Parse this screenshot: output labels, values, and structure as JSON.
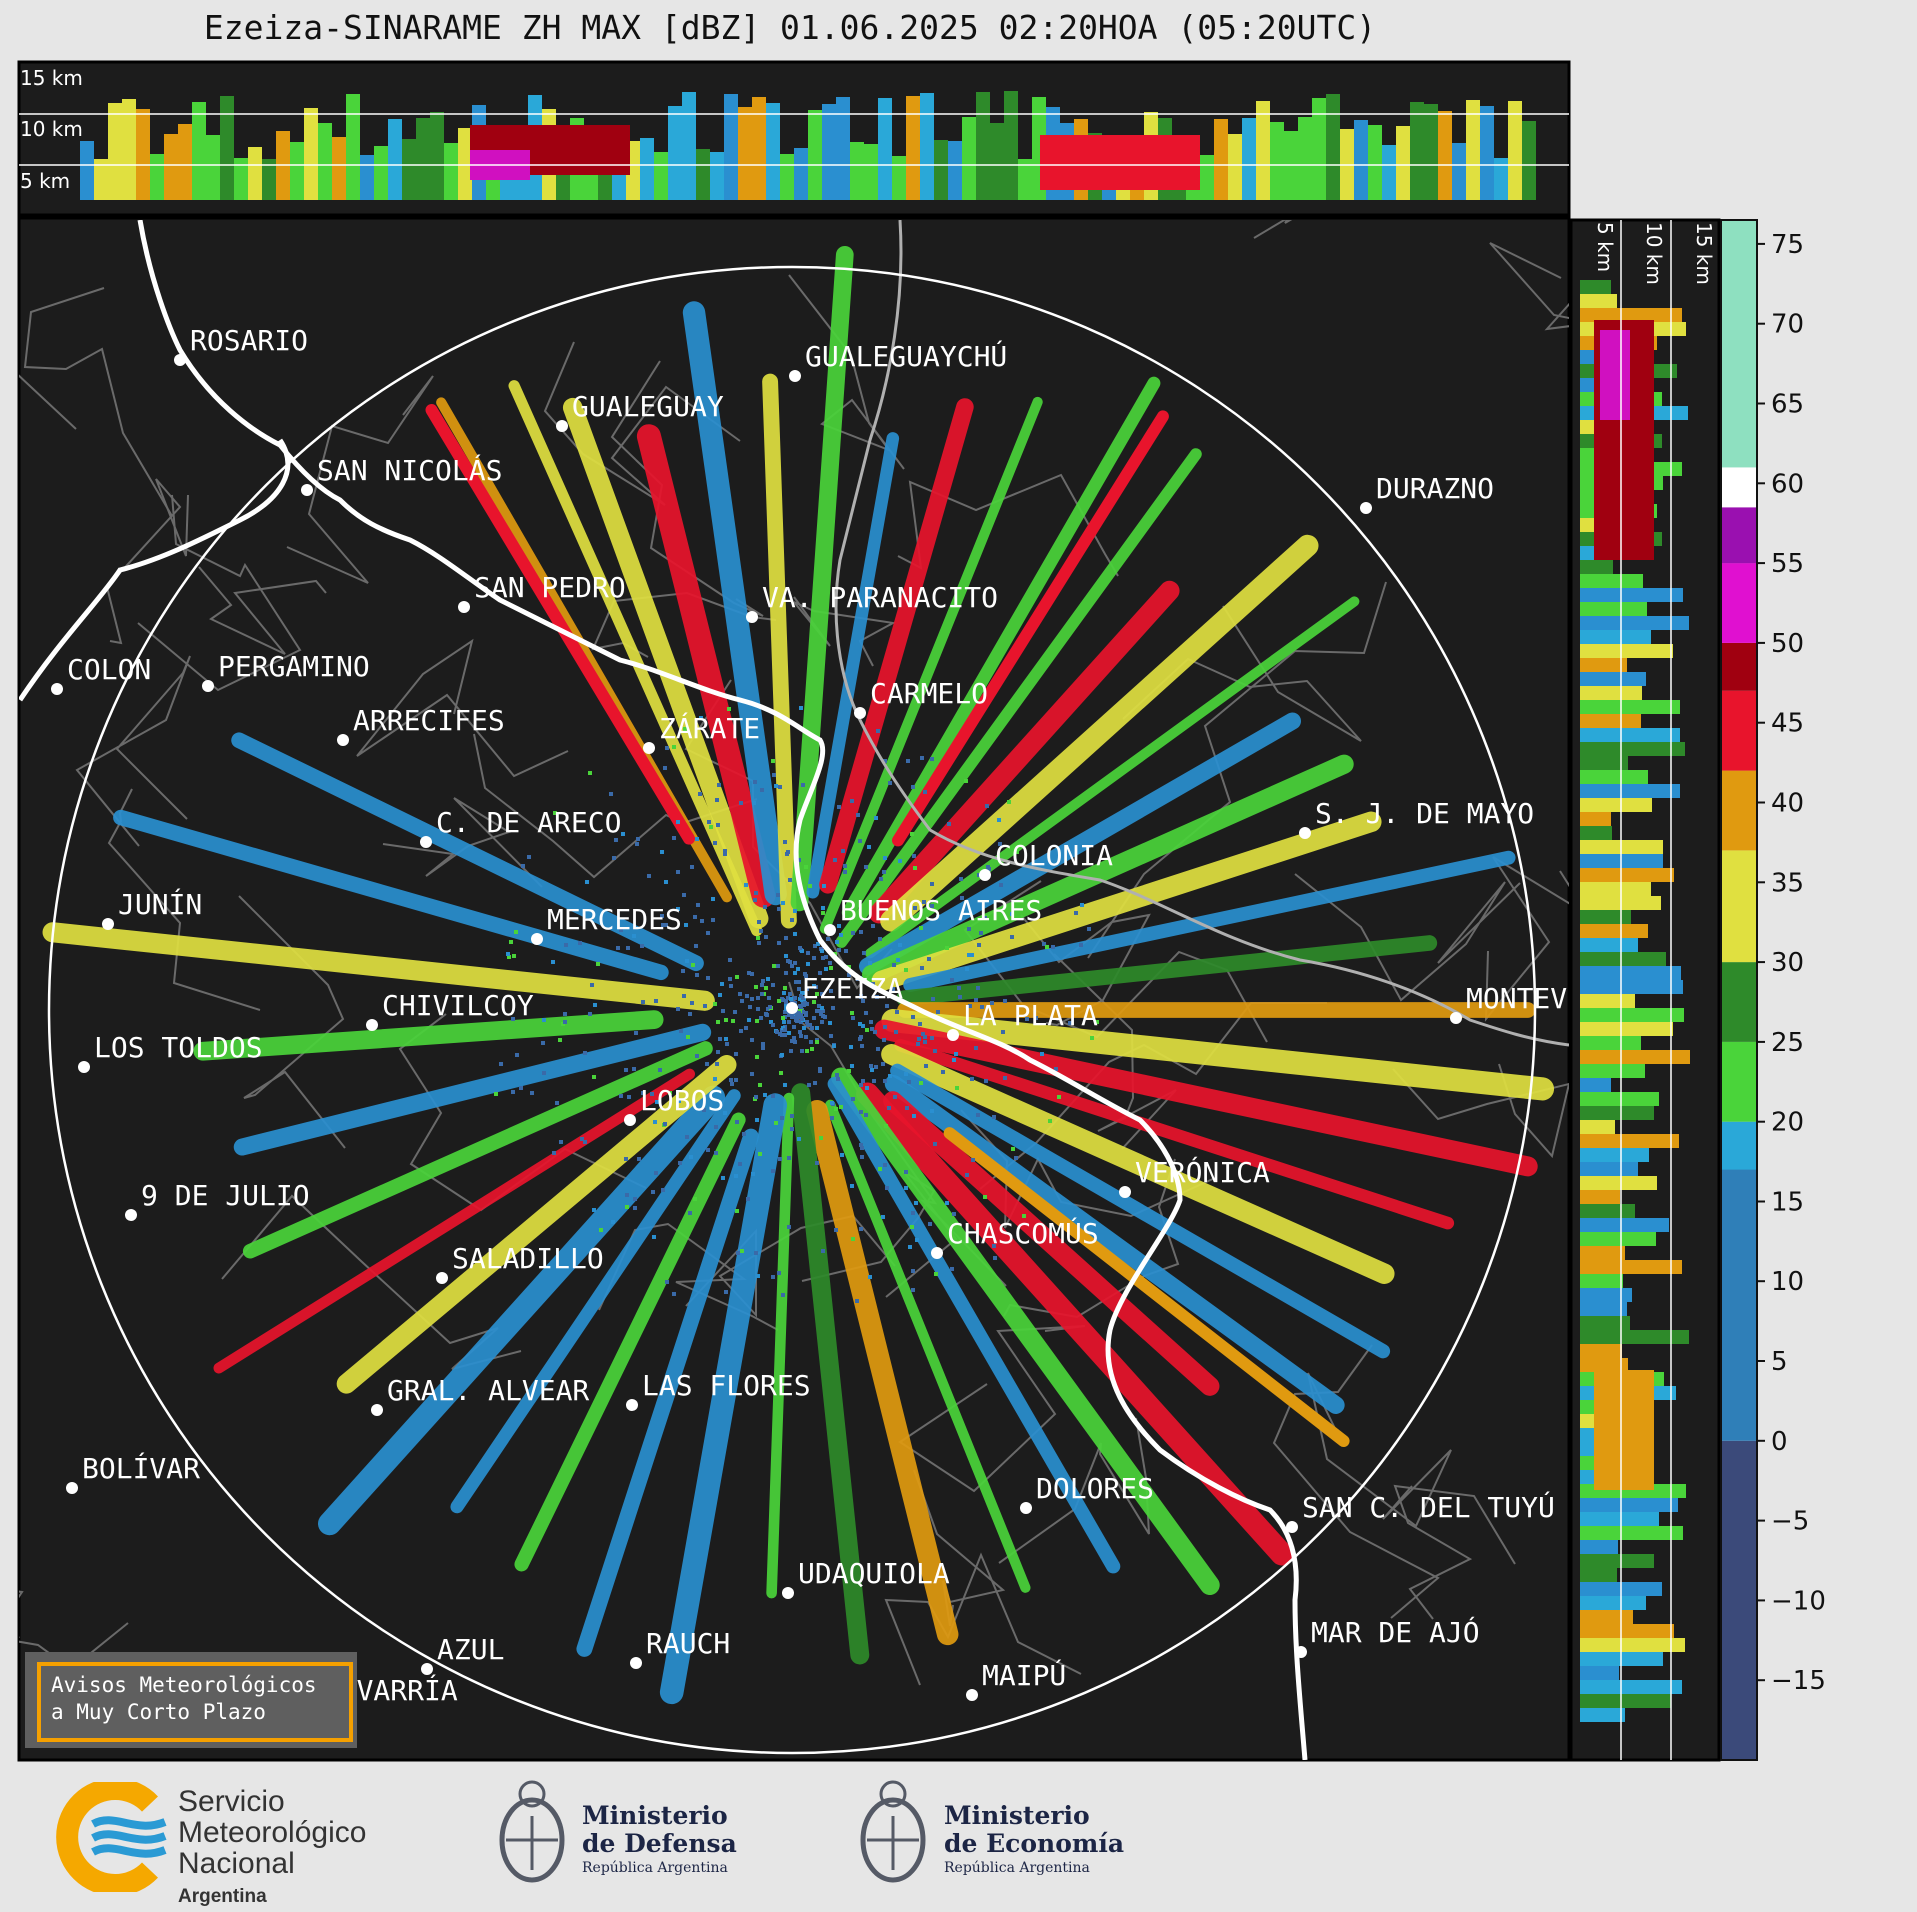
{
  "title": "Ezeiza-SINARAME ZH MAX [dBZ] 01.06.2025 02:20HOA (05:20UTC)",
  "top_panel": {
    "height_labels": [
      "15 km",
      "10 km",
      "5 km"
    ]
  },
  "right_panel": {
    "height_labels": [
      "5 km",
      "10 km",
      "15 km"
    ]
  },
  "colorbar": {
    "unit": "dBZ",
    "ticks": [
      "75",
      "70",
      "65",
      "60",
      "55",
      "50",
      "45",
      "40",
      "35",
      "30",
      "25",
      "20",
      "15",
      "10",
      "5",
      "0",
      "−5",
      "−10",
      "−15"
    ],
    "range": [
      -20,
      76.5
    ],
    "segments": [
      {
        "from": -20,
        "to": 0,
        "color": "#3b4a7a"
      },
      {
        "from": 0,
        "to": 17,
        "color": "#2f7fb8"
      },
      {
        "from": 17,
        "to": 20,
        "color": "#2aa8d8"
      },
      {
        "from": 20,
        "to": 25,
        "color": "#4ad43a"
      },
      {
        "from": 25,
        "to": 30,
        "color": "#2e8a2a"
      },
      {
        "from": 30,
        "to": 37,
        "color": "#e0e040"
      },
      {
        "from": 37,
        "to": 42,
        "color": "#e09a10"
      },
      {
        "from": 42,
        "to": 47,
        "color": "#e8142c"
      },
      {
        "from": 47,
        "to": 50,
        "color": "#a00010"
      },
      {
        "from": 50,
        "to": 55,
        "color": "#e010d0"
      },
      {
        "from": 55,
        "to": 58.5,
        "color": "#9a10b0"
      },
      {
        "from": 58.5,
        "to": 61,
        "color": "#ffffff"
      },
      {
        "from": 61,
        "to": 76.5,
        "color": "#8ee0c0"
      }
    ]
  },
  "map": {
    "radar_center": "EZEIZA",
    "cities": [
      {
        "name": "ROSARIO"
      },
      {
        "name": "GUALEGUAYCHÚ"
      },
      {
        "name": "GUALEGUAY"
      },
      {
        "name": "SAN NICOLÁS"
      },
      {
        "name": "DURAZNO"
      },
      {
        "name": "SAN PEDRO"
      },
      {
        "name": "VA. PARANACITO"
      },
      {
        "name": "COLON"
      },
      {
        "name": "PERGAMINO"
      },
      {
        "name": "CARMELO"
      },
      {
        "name": "ARRECIFES"
      },
      {
        "name": "ZÁRATE"
      },
      {
        "name": "C. DE ARECO"
      },
      {
        "name": "S. J. DE MAYO"
      },
      {
        "name": "COLONIA"
      },
      {
        "name": "JUNÍN"
      },
      {
        "name": "BUENOS AIRES"
      },
      {
        "name": "MERCEDES"
      },
      {
        "name": "EZEIZA"
      },
      {
        "name": "MONTEVIDEO"
      },
      {
        "name": "CHIVILCOY"
      },
      {
        "name": "LA PLATA"
      },
      {
        "name": "LOS TOLDOS"
      },
      {
        "name": "LOBOS"
      },
      {
        "name": "VERÓNICA"
      },
      {
        "name": "9 DE JULIO"
      },
      {
        "name": "CHASCOMÚS"
      },
      {
        "name": "SALADILLO"
      },
      {
        "name": "GRAL. ALVEAR"
      },
      {
        "name": "LAS FLORES"
      },
      {
        "name": "BOLÍVAR"
      },
      {
        "name": "DOLORES"
      },
      {
        "name": "SAN C. DEL TUYÚ"
      },
      {
        "name": "UDAQUIOLA"
      },
      {
        "name": "AZUL"
      },
      {
        "name": "RAUCH"
      },
      {
        "name": "MAR DE AJÓ"
      },
      {
        "name": "OLAVARRÍA"
      },
      {
        "name": "MAIPÚ"
      }
    ]
  },
  "notice": {
    "line1": "Avisos Meteorológicos",
    "line2": "a Muy Corto Plazo"
  },
  "footer": {
    "smn": {
      "line1": "Servicio",
      "line2": "Meteorológico",
      "line3": "Nacional",
      "country": "Argentina"
    },
    "defensa": {
      "line1": "Ministerio",
      "line2": "de Defensa",
      "sub": "República Argentina"
    },
    "economia": {
      "line1": "Ministerio",
      "line2": "de Economía",
      "sub": "República Argentina"
    }
  }
}
